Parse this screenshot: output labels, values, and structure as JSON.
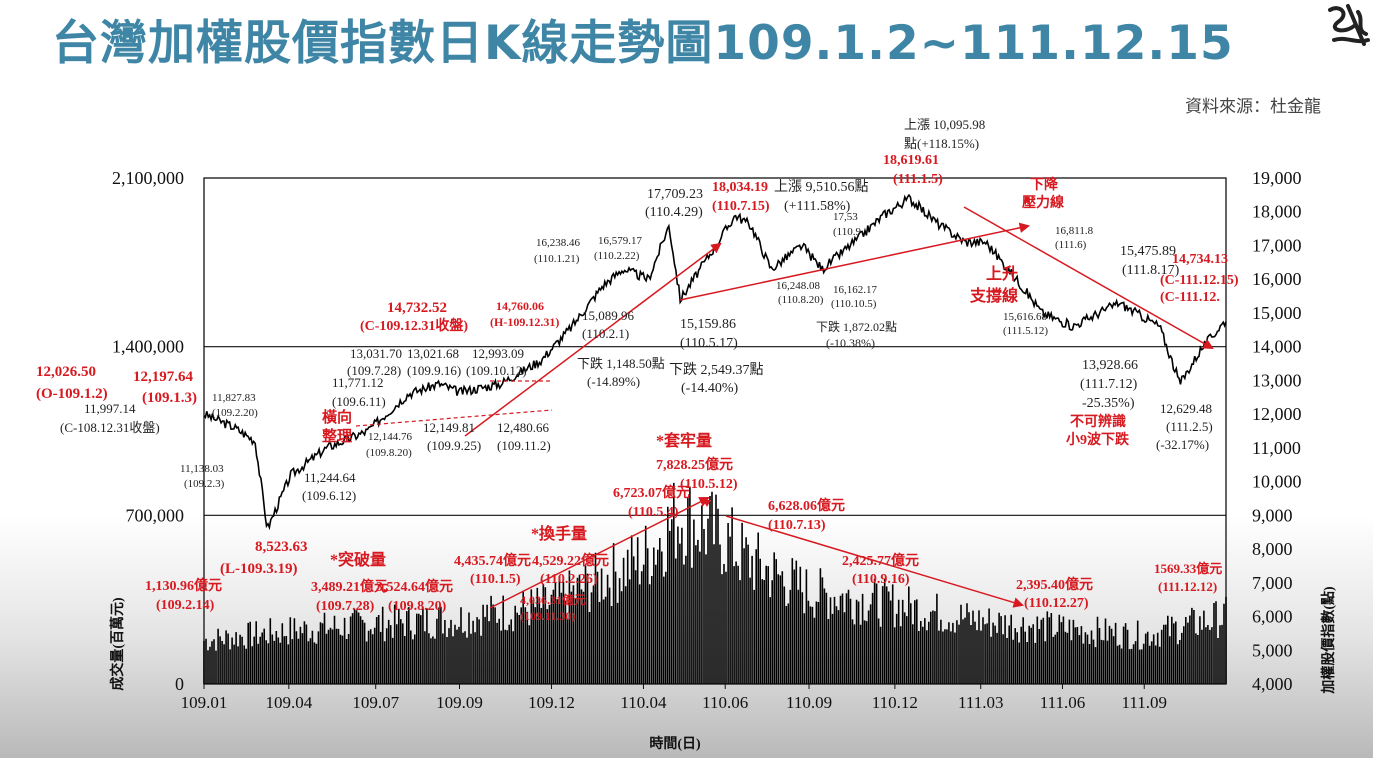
{
  "title": "台灣加權股價指數日K線走勢圖109.1.2~111.12.15",
  "source": "資料來源：杜金龍",
  "chart_data": {
    "type": "line",
    "xlabel": "時間(日)",
    "ylabel_left": "成交量(百萬元)",
    "ylabel_right": "加權股價指數(點)",
    "left_axis": {
      "range": [
        0,
        2100000
      ],
      "ticks": [
        "0",
        "700,000",
        "1,400,000",
        "2,100,000"
      ]
    },
    "right_axis": {
      "range": [
        4000,
        19000
      ],
      "ticks": [
        "4,000",
        "5,000",
        "6,000",
        "7,000",
        "8,000",
        "9,000",
        "10,000",
        "11,000",
        "12,000",
        "13,000",
        "14,000",
        "15,000",
        "16,000",
        "17,000",
        "18,000",
        "19,000"
      ]
    },
    "x_ticks": [
      "109.01",
      "109.04",
      "109.07",
      "109.09",
      "109.12",
      "110.04",
      "110.06",
      "110.09",
      "110.12",
      "111.03",
      "111.06",
      "111.09"
    ],
    "grid": "horizontal lines at 700,000 and 1,400,000",
    "series": [
      {
        "name": "加權股價指數",
        "x": [
          "109.01",
          "109.02",
          "109.03",
          "109.03",
          "109.04",
          "109.05",
          "109.06",
          "109.07",
          "109.08",
          "109.09",
          "109.10",
          "109.11",
          "109.12",
          "110.01",
          "110.02",
          "110.03",
          "110.04",
          "110.05",
          "110.06",
          "110.07",
          "110.08",
          "110.09",
          "110.10",
          "110.11",
          "110.12",
          "111.01",
          "111.02",
          "111.03",
          "111.04",
          "111.05",
          "111.06",
          "111.07",
          "111.08",
          "111.09",
          "111.10",
          "111.11",
          "111.12"
        ],
        "values": [
          12000,
          11600,
          11200,
          8600,
          10200,
          11000,
          11500,
          12600,
          12900,
          12650,
          12900,
          13600,
          14600,
          15800,
          16300,
          16000,
          17600,
          15400,
          17900,
          17600,
          16300,
          17000,
          16300,
          17200,
          17900,
          18400,
          17600,
          17100,
          17100,
          15800,
          15000,
          14600,
          15300,
          14600,
          12900,
          13900,
          14800
        ]
      },
      {
        "name": "成交量",
        "x": [
          "109.01",
          "109.04",
          "109.07",
          "109.09",
          "109.12",
          "110.04",
          "110.05",
          "110.06",
          "110.07",
          "110.09",
          "110.12",
          "111.03",
          "111.06",
          "111.09",
          "111.12"
        ],
        "values": [
          180000,
          220000,
          250000,
          270000,
          330000,
          520000,
          700000,
          600000,
          520000,
          380000,
          330000,
          260000,
          230000,
          200000,
          280000
        ]
      }
    ],
    "annotations": [
      {
        "text": "8,523.63",
        "color": "#d71920"
      },
      {
        "text": "(L-109.3.19)",
        "color": "#d71920"
      },
      {
        "text": "11,138.03",
        "color": "#222222"
      },
      {
        "text": "(109.2.3)",
        "color": "#222222"
      },
      {
        "text": "12,026.50",
        "color": "#d71920"
      },
      {
        "text": "(O-109.1.2)",
        "color": "#d71920"
      },
      {
        "text": "12,197.64",
        "color": "#d71920"
      },
      {
        "text": "(109.1.3)",
        "color": "#d71920"
      },
      {
        "text": "11,827.83",
        "color": "#222222"
      },
      {
        "text": "(109.2.20)",
        "color": "#222222"
      },
      {
        "text": "11,997.14",
        "color": "#222222"
      },
      {
        "text": "(C-108.12.31收盤)",
        "color": "#222222"
      },
      {
        "text": "14,732.52",
        "color": "#d71920"
      },
      {
        "text": "(C-109.12.31收盤)",
        "color": "#d71920"
      },
      {
        "text": "13,031.70",
        "color": "#222222"
      },
      {
        "text": "13,021.68",
        "color": "#222222"
      },
      {
        "text": "12,993.09",
        "color": "#222222"
      },
      {
        "text": "(109.7.28)",
        "color": "#222222"
      },
      {
        "text": "(109.9.16)",
        "color": "#222222"
      },
      {
        "text": "(109.10.12)",
        "color": "#222222"
      },
      {
        "text": "11,771.12",
        "color": "#222222"
      },
      {
        "text": "(109.6.11)",
        "color": "#222222"
      },
      {
        "text": "橫向",
        "color": "#d71920"
      },
      {
        "text": "整理",
        "color": "#d71920"
      },
      {
        "text": "12,144.76",
        "color": "#222222"
      },
      {
        "text": "(109.8.20)",
        "color": "#222222"
      },
      {
        "text": "12,149.81",
        "color": "#222222"
      },
      {
        "text": "(109.9.25)",
        "color": "#222222"
      },
      {
        "text": "12,480.66",
        "color": "#222222"
      },
      {
        "text": "(109.11.2)",
        "color": "#222222"
      },
      {
        "text": "11,244.64",
        "color": "#222222"
      },
      {
        "text": "(109.6.12)",
        "color": "#222222"
      },
      {
        "text": "14,760.06",
        "color": "#d71920"
      },
      {
        "text": "(H-109.12.31)",
        "color": "#d71920"
      },
      {
        "text": "16,238.46",
        "color": "#222222"
      },
      {
        "text": "(110.1.21)",
        "color": "#222222"
      },
      {
        "text": "16,579.17",
        "color": "#222222"
      },
      {
        "text": "(110.2.22)",
        "color": "#222222"
      },
      {
        "text": "15,089.96",
        "color": "#222222"
      },
      {
        "text": "(110.2.1)",
        "color": "#222222"
      },
      {
        "text": "下跌 1,148.50點",
        "color": "#222222"
      },
      {
        "text": "(-14.89%)",
        "color": "#222222"
      },
      {
        "text": "17,709.23",
        "color": "#222222"
      },
      {
        "text": "(110.4.29)",
        "color": "#222222"
      },
      {
        "text": "18,034.19",
        "color": "#d71920"
      },
      {
        "text": "(110.7.15)",
        "color": "#d71920"
      },
      {
        "text": "上漲 9,510.56點",
        "color": "#222222"
      },
      {
        "text": "(+111.58%)",
        "color": "#222222"
      },
      {
        "text": "15,159.86",
        "color": "#222222"
      },
      {
        "text": "(110.5.17)",
        "color": "#222222"
      },
      {
        "text": "下跌 2,549.37點",
        "color": "#222222"
      },
      {
        "text": "(-14.40%)",
        "color": "#222222"
      },
      {
        "text": "上漲 10,095.98",
        "color": "#222222"
      },
      {
        "text": "點(+118.15%)",
        "color": "#222222"
      },
      {
        "text": "18,619.61",
        "color": "#d71920"
      },
      {
        "text": "(111.1.5)",
        "color": "#d71920"
      },
      {
        "text": "17,53",
        "color": "#222222"
      },
      {
        "text": "(110.9",
        "color": "#222222"
      },
      {
        "text": "16,248.08",
        "color": "#222222"
      },
      {
        "text": "(110.8.20)",
        "color": "#222222"
      },
      {
        "text": "16,162.17",
        "color": "#222222"
      },
      {
        "text": "(110.10.5)",
        "color": "#222222"
      },
      {
        "text": "下跌 1,872.02點",
        "color": "#222222"
      },
      {
        "text": "(-10.38%)",
        "color": "#222222"
      },
      {
        "text": "下降",
        "color": "#d71920"
      },
      {
        "text": "壓力線",
        "color": "#d71920"
      },
      {
        "text": "16,811.8",
        "color": "#222222"
      },
      {
        "text": "(111.6)",
        "color": "#222222"
      },
      {
        "text": "上升",
        "color": "#d71920"
      },
      {
        "text": "支撐線",
        "color": "#d71920"
      },
      {
        "text": "15,616.68",
        "color": "#222222"
      },
      {
        "text": "(111.5.12)",
        "color": "#222222"
      },
      {
        "text": "15,475.89",
        "color": "#222222"
      },
      {
        "text": "(111.8.17)",
        "color": "#222222"
      },
      {
        "text": "14,734.13",
        "color": "#d71920"
      },
      {
        "text": "(C-111.12.15)",
        "color": "#d71920"
      },
      {
        "text": "(C-111.12.",
        "color": "#d71920"
      },
      {
        "text": "13,928.66",
        "color": "#222222"
      },
      {
        "text": "(111.7.12)",
        "color": "#222222"
      },
      {
        "text": "-25.35%)",
        "color": "#222222"
      },
      {
        "text": "不可辨識",
        "color": "#d71920"
      },
      {
        "text": "小9波下跌",
        "color": "#d71920"
      },
      {
        "text": "12,629.48",
        "color": "#222222"
      },
      {
        "text": "(111.2.5)",
        "color": "#222222"
      },
      {
        "text": "(-32.17%)",
        "color": "#222222"
      },
      {
        "text": "*套牢量",
        "color": "#d71920"
      },
      {
        "text": "7,828.25億元",
        "color": "#d71920"
      },
      {
        "text": "(110.5.12)",
        "color": "#d71920"
      },
      {
        "text": "6,723.07億元",
        "color": "#d71920"
      },
      {
        "text": "(110.5.4)",
        "color": "#d71920"
      },
      {
        "text": "6,628.06億元",
        "color": "#d71920"
      },
      {
        "text": "(110.7.13)",
        "color": "#d71920"
      },
      {
        "text": "*換手量",
        "color": "#d71920"
      },
      {
        "text": "4,435.74億元",
        "color": "#d71920"
      },
      {
        "text": "(110.1.5)",
        "color": "#d71920"
      },
      {
        "text": "4,529.22億元",
        "color": "#d71920"
      },
      {
        "text": "(110.2.26)",
        "color": "#d71920"
      },
      {
        "text": "4,036.31億元",
        "color": "#d71920"
      },
      {
        "text": "(109.11.30)",
        "color": "#d71920"
      },
      {
        "text": "2,425.77億元",
        "color": "#d71920"
      },
      {
        "text": "(110.9.16)",
        "color": "#d71920"
      },
      {
        "text": "2,395.40億元",
        "color": "#d71920"
      },
      {
        "text": "(110.12.27)",
        "color": "#d71920"
      },
      {
        "text": "1569.33億元",
        "color": "#d71920"
      },
      {
        "text": "(111.12.12)",
        "color": "#d71920"
      },
      {
        "text": "*突破量",
        "color": "#d71920"
      },
      {
        "text": "3,489.21億元",
        "color": "#d71920"
      },
      {
        "text": "(109.7.28)",
        "color": "#d71920"
      },
      {
        "text": "3,524.64億元",
        "color": "#d71920"
      },
      {
        "text": "(109.8.20)",
        "color": "#d71920"
      },
      {
        "text": "1,130.96億元",
        "color": "#d71920"
      },
      {
        "text": "(109.2.14)",
        "color": "#d71920"
      }
    ]
  },
  "colors": {
    "title": "#3f86a6",
    "red": "#d71920",
    "ink": "#111111"
  }
}
